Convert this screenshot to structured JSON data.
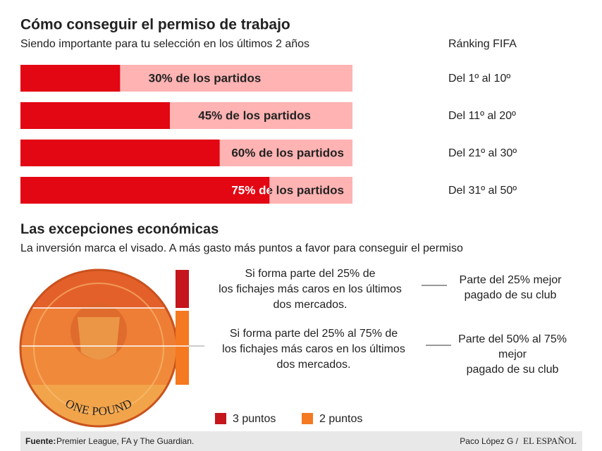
{
  "chart_data": {
    "type": "bar",
    "orientation": "horizontal",
    "title": "Cómo conseguir el permiso de trabajo",
    "subtitle": "Siendo importante para tu selección en los últimos 2 años",
    "category_header": "Ránking FIFA",
    "categories": [
      "Del 1º al 10º",
      "Del 11º al 20º",
      "Del 21º al 30º",
      "Del 31º al 50º"
    ],
    "values": [
      30,
      45,
      60,
      75
    ],
    "value_labels": [
      "30% de los partidos",
      "45% de los partidos",
      "60% de los partidos",
      "75% de los partidos"
    ],
    "color": "#e30613",
    "track_color": "#ffb3b3",
    "xlim": [
      0,
      100
    ]
  },
  "exceptions": {
    "title": "Las excepciones económicas",
    "subtitle": "La inversión marca el visado. A más gasto más puntos a favor para conseguir el permiso",
    "coin_inscription": "ONE POUND",
    "rows": [
      {
        "description": [
          "Si forma parte del 25% de",
          "los fichajes más caros en los últimos",
          "dos mercados."
        ],
        "detail": [
          "Parte del 25% mejor",
          "pagado de su club"
        ]
      },
      {
        "description": [
          "Si forma parte del 25% al 75% de",
          "los fichajes más caros en los últimos",
          "dos mercados."
        ],
        "detail": [
          "Parte del 50% al 75%",
          "mejor",
          "pagado de su club"
        ]
      }
    ],
    "legend": [
      {
        "label": "3 puntos",
        "color": "#c4161c"
      },
      {
        "label": "2 puntos",
        "color": "#f47920"
      }
    ]
  },
  "footer": {
    "source_label": "Fuente:",
    "source": "Premier League, FA y The Guardian.",
    "author": "Paco López G /",
    "brand": "EL ESPAÑOL"
  }
}
